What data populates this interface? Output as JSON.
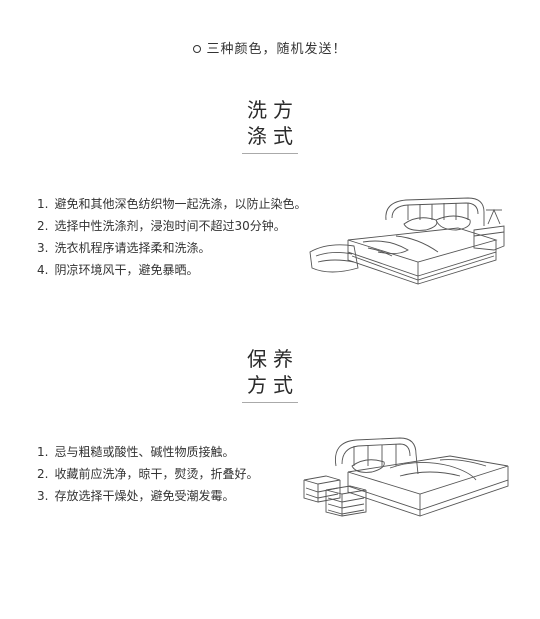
{
  "note": {
    "text": "三种颜色，随机发送！"
  },
  "wash": {
    "title_line1": "洗方",
    "title_line2": "涤式",
    "items": [
      {
        "num": "1.",
        "text": "避免和其他深色纺织物一起洗涤，以防止染色。"
      },
      {
        "num": "2.",
        "text": "选择中性洗涤剂，浸泡时间不超过30分钟。"
      },
      {
        "num": "3.",
        "text": "洗衣机程序请选择柔和洗涤。"
      },
      {
        "num": "4.",
        "text": "阴凉环境风干，避免暴晒。"
      }
    ],
    "illustration_icon": "bed-with-nightstand-icon"
  },
  "care": {
    "title_line1": "保养",
    "title_line2": "方式",
    "items": [
      {
        "num": "1.",
        "text": "忌与粗糙或酸性、碱性物质接触。"
      },
      {
        "num": "2.",
        "text": "收藏前应洗净，晾干，熨烫，折叠好。"
      },
      {
        "num": "3.",
        "text": "存放选择干燥处，避免受潮发霉。"
      }
    ],
    "illustration_icon": "bed-with-stools-icon"
  },
  "colors": {
    "text": "#333333",
    "line_art": "#555555",
    "rule": "#aaaaaa"
  }
}
